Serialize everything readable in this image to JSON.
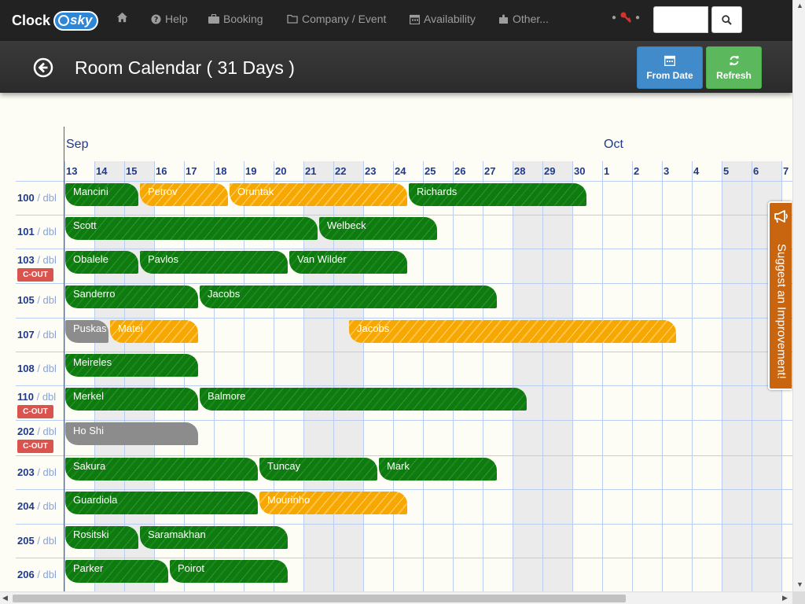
{
  "brand": {
    "text": "Clock",
    "pill": "sky"
  },
  "nav": {
    "home_icon": "home-icon",
    "items": [
      {
        "label": "Help",
        "icon": "question-circle-icon"
      },
      {
        "label": "Booking",
        "icon": "briefcase-icon"
      },
      {
        "label": "Company / Event",
        "icon": "folder-icon"
      },
      {
        "label": "Availability",
        "icon": "calendar-icon"
      },
      {
        "label": "Other...",
        "icon": "puzzle-icon"
      }
    ],
    "key_icon": "key-icon",
    "search_icon": "search-icon"
  },
  "header": {
    "title": "Room Calendar ( 31 Days )",
    "from_date_label": "From Date",
    "refresh_label": "Refresh"
  },
  "calendar": {
    "months": [
      {
        "label": "Sep",
        "day_index": 0
      },
      {
        "label": "Oct",
        "day_index": 18
      }
    ],
    "days": [
      "13",
      "14",
      "15",
      "16",
      "17",
      "18",
      "19",
      "20",
      "21",
      "22",
      "23",
      "24",
      "25",
      "26",
      "27",
      "28",
      "29",
      "30",
      "1",
      "2",
      "3",
      "4",
      "5",
      "6",
      "7"
    ],
    "weekend_day_indices": [
      1,
      2,
      8,
      9,
      15,
      16,
      22,
      23
    ],
    "cout_label": "C-OUT",
    "rooms": [
      {
        "number": "100",
        "type": "dbl",
        "cout": false,
        "bookings": [
          {
            "guest": "Mancini",
            "start": 0,
            "nights": 2.5,
            "color": "green"
          },
          {
            "guest": "Petrov",
            "start": 2.5,
            "nights": 3,
            "color": "orange"
          },
          {
            "guest": "Oruntak",
            "start": 5.5,
            "nights": 6,
            "color": "orange"
          },
          {
            "guest": "Richards",
            "start": 11.5,
            "nights": 6,
            "color": "green"
          }
        ]
      },
      {
        "number": "101",
        "type": "dbl",
        "cout": false,
        "bookings": [
          {
            "guest": "Scott",
            "start": 0,
            "nights": 8.5,
            "color": "green"
          },
          {
            "guest": "Welbeck",
            "start": 8.5,
            "nights": 4,
            "color": "green"
          }
        ]
      },
      {
        "number": "103",
        "type": "dbl",
        "cout": true,
        "bookings": [
          {
            "guest": "Obalele",
            "start": 0,
            "nights": 2.5,
            "color": "green"
          },
          {
            "guest": "Pavlos",
            "start": 2.5,
            "nights": 5,
            "color": "green"
          },
          {
            "guest": "Van Wilder",
            "start": 7.5,
            "nights": 4,
            "color": "green"
          }
        ]
      },
      {
        "number": "105",
        "type": "dbl",
        "cout": false,
        "bookings": [
          {
            "guest": "Sanderro",
            "start": 0,
            "nights": 4.5,
            "color": "green"
          },
          {
            "guest": "Jacobs",
            "start": 4.5,
            "nights": 10,
            "color": "green"
          }
        ]
      },
      {
        "number": "107",
        "type": "dbl",
        "cout": false,
        "bookings": [
          {
            "guest": "Puskas",
            "start": 0,
            "nights": 1.5,
            "color": "gray"
          },
          {
            "guest": "Matei",
            "start": 1.5,
            "nights": 3,
            "color": "orange"
          },
          {
            "guest": "Jacobs",
            "start": 9.5,
            "nights": 11,
            "color": "orange"
          }
        ]
      },
      {
        "number": "108",
        "type": "dbl",
        "cout": false,
        "bookings": [
          {
            "guest": "Meireles",
            "start": 0,
            "nights": 4.5,
            "color": "green"
          }
        ]
      },
      {
        "number": "110",
        "type": "dbl",
        "cout": true,
        "bookings": [
          {
            "guest": "Merkel",
            "start": 0,
            "nights": 4.5,
            "color": "green"
          },
          {
            "guest": "Balmore",
            "start": 4.5,
            "nights": 11,
            "color": "green"
          }
        ]
      },
      {
        "number": "202",
        "type": "dbl",
        "cout": true,
        "bookings": [
          {
            "guest": "Ho Shi",
            "start": 0,
            "nights": 4.5,
            "color": "gray"
          }
        ]
      },
      {
        "number": "203",
        "type": "dbl",
        "cout": false,
        "bookings": [
          {
            "guest": "Sakura",
            "start": 0,
            "nights": 6.5,
            "color": "green"
          },
          {
            "guest": "Tuncay",
            "start": 6.5,
            "nights": 4,
            "color": "green"
          },
          {
            "guest": "Mark",
            "start": 10.5,
            "nights": 4,
            "color": "green"
          }
        ]
      },
      {
        "number": "204",
        "type": "dbl",
        "cout": false,
        "bookings": [
          {
            "guest": "Guardiola",
            "start": 0,
            "nights": 6.5,
            "color": "green"
          },
          {
            "guest": "Mourinho",
            "start": 6.5,
            "nights": 5,
            "color": "orange"
          }
        ]
      },
      {
        "number": "205",
        "type": "dbl",
        "cout": false,
        "bookings": [
          {
            "guest": "Rositski",
            "start": 0,
            "nights": 2.5,
            "color": "green"
          },
          {
            "guest": "Saramakhan",
            "start": 2.5,
            "nights": 5,
            "color": "green"
          }
        ]
      },
      {
        "number": "206",
        "type": "dbl",
        "cout": false,
        "bookings": [
          {
            "guest": "Parker",
            "start": 0,
            "nights": 3.5,
            "color": "green"
          },
          {
            "guest": "Poirot",
            "start": 3.5,
            "nights": 4,
            "color": "green"
          }
        ]
      }
    ]
  },
  "suggest": {
    "label": "Suggest an Improvement!",
    "icon": "megaphone-icon"
  }
}
